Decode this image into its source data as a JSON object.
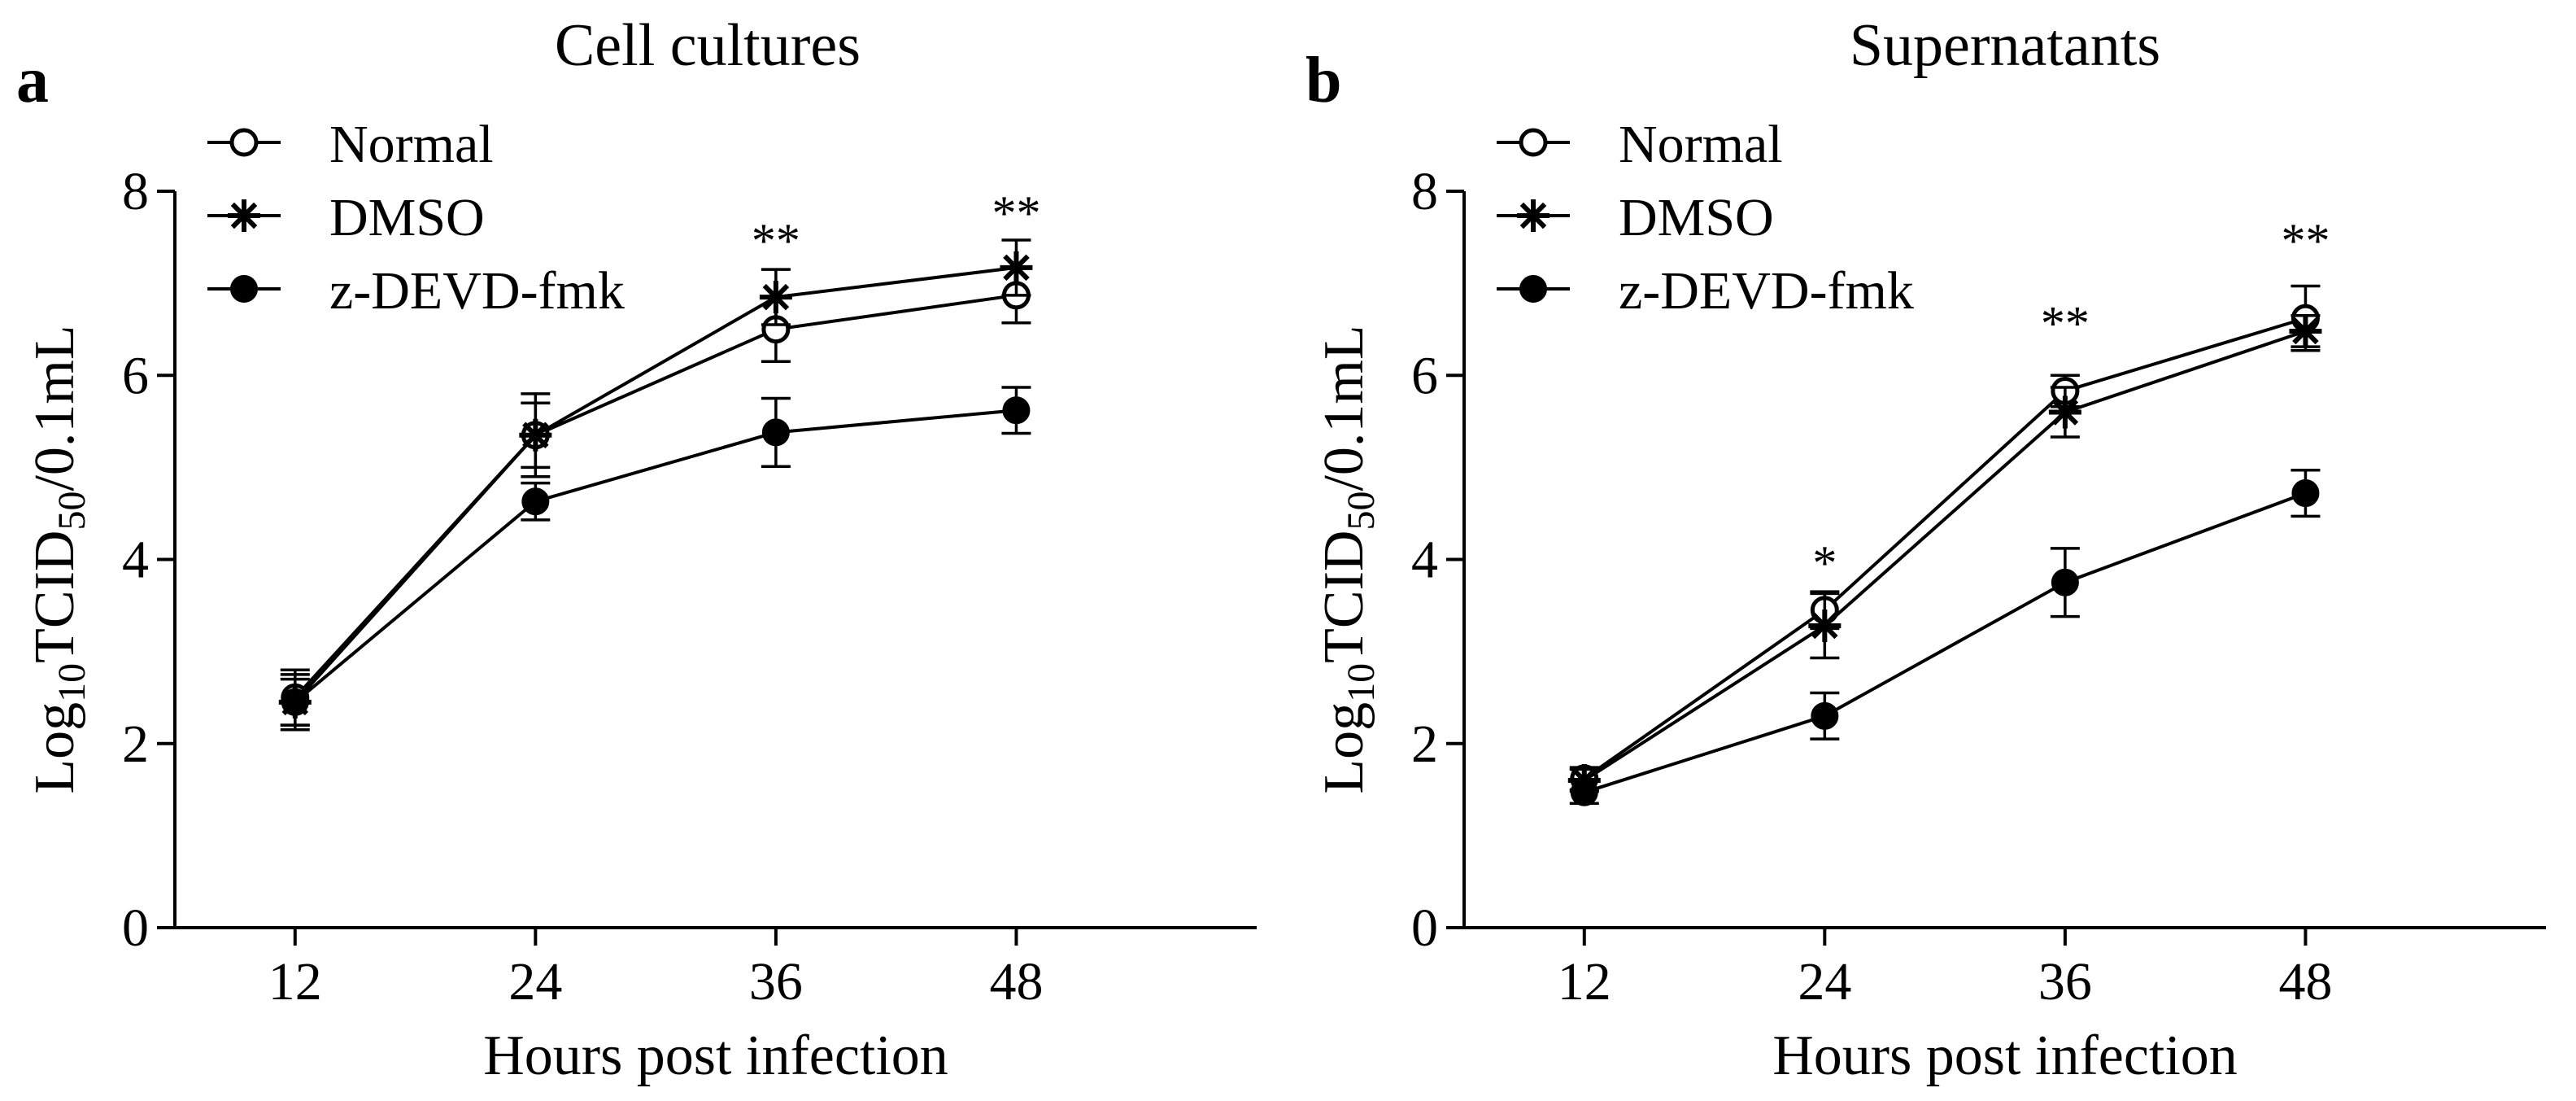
{
  "chart_data": [
    {
      "type": "line",
      "panel_label": "a",
      "title": "Cell cultures",
      "xlabel": "Hours post infection",
      "ylabel": {
        "prefix": "Log",
        "sub1": "10",
        "mid": "TCID",
        "sub2": "50",
        "suffix": "/0.1mL"
      },
      "x": [
        12,
        24,
        36,
        48
      ],
      "x_ticks": [
        "12",
        "24",
        "36",
        "48"
      ],
      "xlim": [
        6,
        60
      ],
      "ylim": [
        0,
        8
      ],
      "y_ticks": [
        0,
        2,
        4,
        6,
        8
      ],
      "grid": false,
      "legend_position": "top-left",
      "series": [
        {
          "name": "Normal",
          "marker": "open-circle",
          "values": [
            2.5,
            5.35,
            6.5,
            6.87
          ],
          "errors": [
            0.3,
            0.35,
            0.35,
            0.3
          ]
        },
        {
          "name": "DMSO",
          "marker": "asterisk",
          "values": [
            2.45,
            5.35,
            6.85,
            7.17
          ],
          "errors": [
            0.3,
            0.45,
            0.3,
            0.3
          ]
        },
        {
          "name": "z-DEVD-fmk",
          "marker": "filled-circle",
          "values": [
            2.45,
            4.63,
            5.38,
            5.62
          ],
          "errors": [
            0.25,
            0.2,
            0.37,
            0.25
          ]
        }
      ],
      "annotations": [
        {
          "x": 36,
          "y": 7.55,
          "text": "**"
        },
        {
          "x": 48,
          "y": 7.85,
          "text": "**"
        }
      ]
    },
    {
      "type": "line",
      "panel_label": "b",
      "title": "Supernatants",
      "xlabel": "Hours post infection",
      "ylabel": {
        "prefix": "Log",
        "sub1": "10",
        "mid": "TCID",
        "sub2": "50",
        "suffix": "/0.1mL"
      },
      "x": [
        12,
        24,
        36,
        48
      ],
      "x_ticks": [
        "12",
        "24",
        "36",
        "48"
      ],
      "xlim": [
        6,
        60
      ],
      "ylim": [
        0,
        8
      ],
      "y_ticks": [
        0,
        2,
        4,
        6,
        8
      ],
      "grid": false,
      "legend_position": "top-left",
      "series": [
        {
          "name": "Normal",
          "marker": "open-circle",
          "values": [
            1.62,
            3.45,
            5.83,
            6.62
          ],
          "errors": [
            0.12,
            0.2,
            0.17,
            0.35
          ]
        },
        {
          "name": "DMSO",
          "marker": "asterisk",
          "values": [
            1.6,
            3.28,
            5.6,
            6.48
          ],
          "errors": [
            0.12,
            0.35,
            0.27,
            0.17
          ]
        },
        {
          "name": "z-DEVD-fmk",
          "marker": "filled-circle",
          "values": [
            1.47,
            2.3,
            3.75,
            4.72
          ],
          "errors": [
            0.12,
            0.25,
            0.37,
            0.25
          ]
        }
      ],
      "annotations": [
        {
          "x": 24,
          "y": 4.05,
          "text": "*"
        },
        {
          "x": 36,
          "y": 6.65,
          "text": "**"
        },
        {
          "x": 48,
          "y": 7.55,
          "text": "**"
        }
      ]
    }
  ]
}
